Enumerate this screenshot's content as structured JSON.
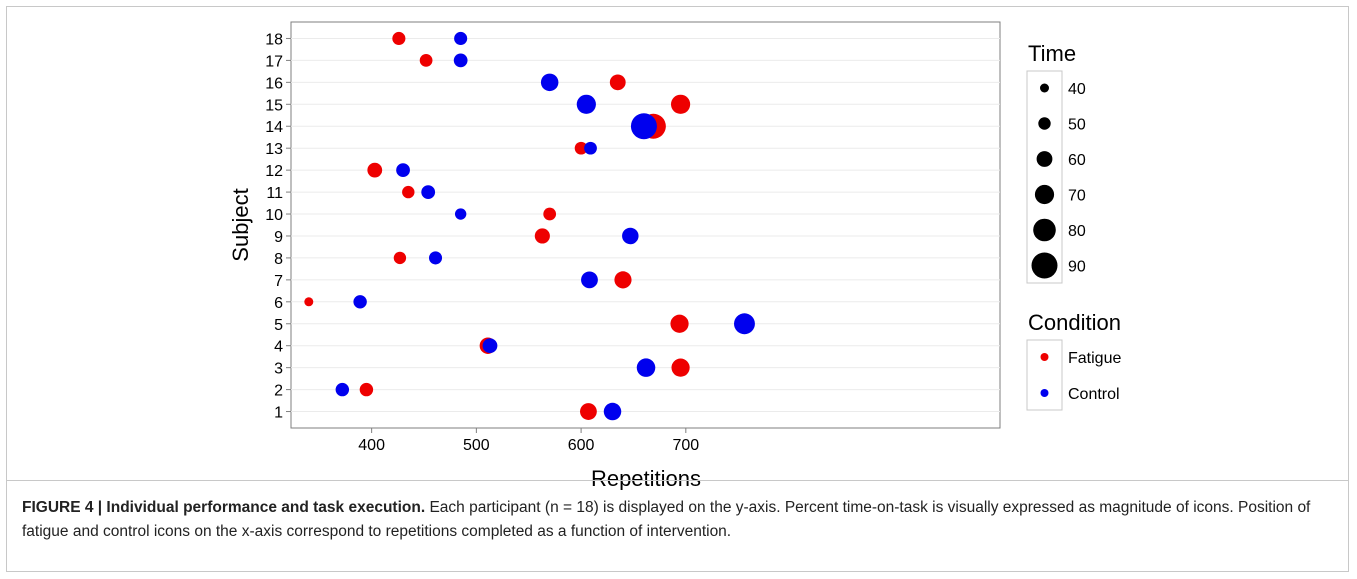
{
  "chart_data": {
    "type": "scatter",
    "xlabel": "Repetitions",
    "ylabel": "Subject",
    "xlim": [
      323,
      1000
    ],
    "ylim": [
      0.25,
      18.75
    ],
    "xticks": [
      400,
      500,
      600,
      700
    ],
    "yticks": [
      1,
      2,
      3,
      4,
      5,
      6,
      7,
      8,
      9,
      10,
      11,
      12,
      13,
      14,
      15,
      16,
      17,
      18
    ],
    "grid": true,
    "legend_position": "right",
    "size_legend": {
      "title": "Time",
      "values": [
        40,
        50,
        60,
        70,
        80,
        90
      ]
    },
    "color_legend": {
      "title": "Condition",
      "entries": [
        "Fatigue",
        "Control"
      ]
    },
    "colors": {
      "Fatigue": "#ee0000",
      "Control": "#0000ee"
    },
    "series": [
      {
        "name": "Fatigue",
        "points": [
          {
            "subject": 1,
            "x": 607,
            "time": 63
          },
          {
            "subject": 2,
            "x": 395,
            "time": 53
          },
          {
            "subject": 3,
            "x": 695,
            "time": 67
          },
          {
            "subject": 4,
            "x": 511,
            "time": 62
          },
          {
            "subject": 5,
            "x": 694,
            "time": 67
          },
          {
            "subject": 6,
            "x": 340,
            "time": 40
          },
          {
            "subject": 7,
            "x": 640,
            "time": 64
          },
          {
            "subject": 8,
            "x": 427,
            "time": 50
          },
          {
            "subject": 9,
            "x": 563,
            "time": 58
          },
          {
            "subject": 10,
            "x": 570,
            "time": 51
          },
          {
            "subject": 11,
            "x": 435,
            "time": 50
          },
          {
            "subject": 12,
            "x": 403,
            "time": 57
          },
          {
            "subject": 13,
            "x": 600,
            "time": 51
          },
          {
            "subject": 14,
            "x": 669,
            "time": 87
          },
          {
            "subject": 15,
            "x": 695,
            "time": 70
          },
          {
            "subject": 16,
            "x": 635,
            "time": 60
          },
          {
            "subject": 17,
            "x": 452,
            "time": 51
          },
          {
            "subject": 18,
            "x": 426,
            "time": 52
          }
        ]
      },
      {
        "name": "Control",
        "points": [
          {
            "subject": 1,
            "x": 630,
            "time": 65
          },
          {
            "subject": 2,
            "x": 372,
            "time": 53
          },
          {
            "subject": 3,
            "x": 662,
            "time": 68
          },
          {
            "subject": 4,
            "x": 513,
            "time": 57
          },
          {
            "subject": 5,
            "x": 756,
            "time": 75
          },
          {
            "subject": 6,
            "x": 389,
            "time": 53
          },
          {
            "subject": 7,
            "x": 608,
            "time": 63
          },
          {
            "subject": 8,
            "x": 461,
            "time": 52
          },
          {
            "subject": 9,
            "x": 647,
            "time": 62
          },
          {
            "subject": 10,
            "x": 485,
            "time": 47
          },
          {
            "subject": 11,
            "x": 454,
            "time": 54
          },
          {
            "subject": 12,
            "x": 430,
            "time": 54
          },
          {
            "subject": 13,
            "x": 609,
            "time": 51
          },
          {
            "subject": 14,
            "x": 660,
            "time": 90
          },
          {
            "subject": 15,
            "x": 605,
            "time": 70
          },
          {
            "subject": 16,
            "x": 570,
            "time": 65
          },
          {
            "subject": 17,
            "x": 485,
            "time": 54
          },
          {
            "subject": 18,
            "x": 485,
            "time": 52
          }
        ]
      }
    ]
  },
  "caption": {
    "label": "FIGURE 4 | Individual performance and task execution.",
    "text": " Each participant (n = 18) is displayed on the y-axis. Percent time-on-task is visually expressed as magnitude of icons. Position of fatigue and control icons on the x-axis correspond to repetitions completed as a function of intervention."
  }
}
